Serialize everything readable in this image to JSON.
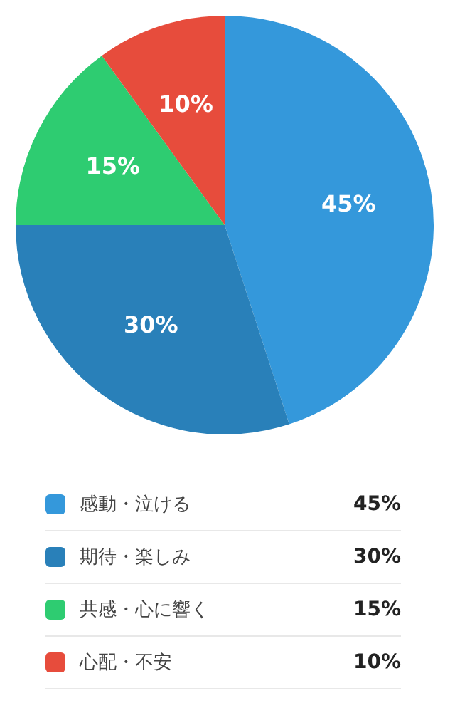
{
  "chart_data": {
    "type": "pie",
    "categories": [
      "感動・泣ける",
      "期待・楽しみ",
      "共感・心に響く",
      "心配・不安"
    ],
    "values": [
      45,
      30,
      15,
      10
    ],
    "value_labels": [
      "45%",
      "30%",
      "15%",
      "10%"
    ],
    "colors": [
      "#3498db",
      "#2980b9",
      "#2ecc71",
      "#e74c3c"
    ],
    "legend": "bottom"
  }
}
